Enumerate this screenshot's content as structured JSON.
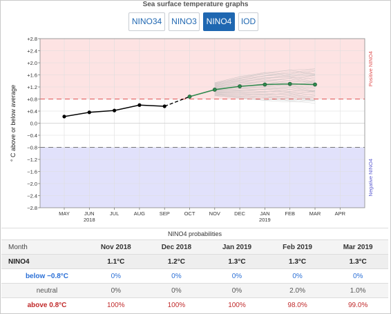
{
  "header": {
    "title": "Sea surface temperature graphs"
  },
  "tabs": [
    {
      "label": "NINO34",
      "active": false
    },
    {
      "label": "NINO3",
      "active": false
    },
    {
      "label": "NINO4",
      "active": true
    },
    {
      "label": "IOD",
      "active": false
    }
  ],
  "colors": {
    "accent": "#1f67b1",
    "positive_band": "#fde3e3",
    "negative_band": "#e1e1fb",
    "observed": "#000000",
    "forecast": "#2f8a4e",
    "ensemble": "#b4b4b4"
  },
  "chart_data": {
    "type": "line",
    "ylabel": "° C above or below average",
    "ylim": [
      -2.8,
      2.8
    ],
    "yticks": [
      "+2.8",
      "+2.4",
      "+2.0",
      "+1.6",
      "+1.2",
      "+0.8",
      "+0.4",
      "0.0",
      "−0.4",
      "−0.8",
      "−1.2",
      "−1.6",
      "−2.0",
      "−2.4",
      "−2.8"
    ],
    "ytick_values": [
      2.8,
      2.4,
      2.0,
      1.6,
      1.2,
      0.8,
      0.4,
      0.0,
      -0.4,
      -0.8,
      -1.2,
      -1.6,
      -2.0,
      -2.4,
      -2.8
    ],
    "x_labels": [
      "MAY",
      "JUN",
      "JUL",
      "AUG",
      "SEP",
      "OCT",
      "NOV",
      "DEC",
      "JAN",
      "FEB",
      "MAR",
      "APR"
    ],
    "year_labels": [
      {
        "month": "JUN",
        "year": "2018"
      },
      {
        "month": "JAN",
        "year": "2019"
      }
    ],
    "threshold_upper": 0.8,
    "threshold_lower": -0.8,
    "positive_label": "Positive NINO4",
    "negative_label": "Negative NINO4",
    "observed": {
      "x": [
        "MAY",
        "JUN",
        "JUL",
        "AUG",
        "SEP"
      ],
      "values": [
        0.22,
        0.36,
        0.42,
        0.6,
        0.56
      ]
    },
    "transition": {
      "x": [
        "SEP",
        "OCT"
      ],
      "values": [
        0.56,
        0.88
      ]
    },
    "forecast": {
      "x": [
        "OCT",
        "NOV",
        "DEC",
        "JAN",
        "FEB",
        "MAR"
      ],
      "values": [
        0.88,
        1.11,
        1.22,
        1.28,
        1.3,
        1.28
      ]
    },
    "ensemble_range": {
      "x": [
        "NOV",
        "DEC",
        "JAN",
        "FEB",
        "MAR"
      ],
      "low": [
        0.9,
        0.82,
        0.75,
        0.7,
        0.66
      ],
      "high": [
        1.35,
        1.55,
        1.7,
        1.76,
        1.8
      ]
    },
    "grid": true
  },
  "table": {
    "title": "NINO4 probabilities",
    "header": [
      "Month",
      "Nov 2018",
      "Dec 2018",
      "Jan 2019",
      "Feb 2019",
      "Mar 2019"
    ],
    "rows": [
      {
        "label": "NINO4",
        "cells": [
          "1.1°C",
          "1.2°C",
          "1.3°C",
          "1.3°C",
          "1.3°C"
        ]
      },
      {
        "label": "below −0.8°C",
        "cells": [
          "0%",
          "0%",
          "0%",
          "0%",
          "0%"
        ]
      },
      {
        "label": "neutral",
        "cells": [
          "0%",
          "0%",
          "0%",
          "2.0%",
          "1.0%"
        ]
      },
      {
        "label": "above 0.8°C",
        "cells": [
          "100%",
          "100%",
          "100%",
          "98.0%",
          "99.0%"
        ]
      }
    ]
  }
}
